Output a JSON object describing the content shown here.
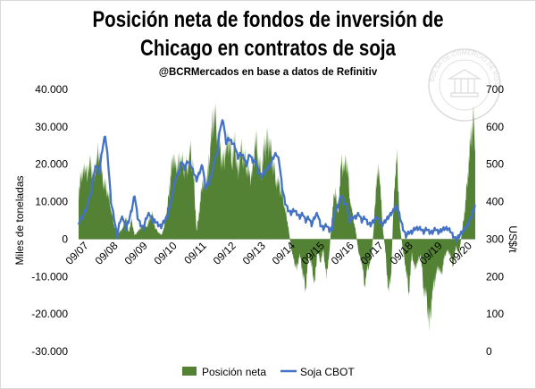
{
  "chart_data": {
    "type": "area+line",
    "title_line1": "Posición neta de fondos de inversión de",
    "title_line2": "Chicago en contratos de soja",
    "subtitle": "@BCRMercados  en base a datos de Refinitiv",
    "ylabel_left": "Miles de toneladas",
    "ylabel_right": "US$/t",
    "ylim_left": [
      -30000,
      40000
    ],
    "ylim_right": [
      0,
      700
    ],
    "yticks_left": [
      "40.000",
      "30.000",
      "20.000",
      "10.000",
      "0",
      "-10.000",
      "-20.000",
      "-30.000"
    ],
    "yticks_left_values": [
      40000,
      30000,
      20000,
      10000,
      0,
      -10000,
      -20000,
      -30000
    ],
    "yticks_right": [
      "700",
      "600",
      "500",
      "400",
      "300",
      "200",
      "100",
      "0"
    ],
    "yticks_right_values": [
      700,
      600,
      500,
      400,
      300,
      200,
      100,
      0
    ],
    "x_range": [
      2007.5,
      2020.95
    ],
    "x_ticks": [
      "09/07",
      "09/08",
      "09/09",
      "09/10",
      "09/11",
      "09/12",
      "09/13",
      "09/14",
      "09/15",
      "09/16",
      "09/17",
      "09/18",
      "09/19",
      "09/20"
    ],
    "x_tick_values": [
      2007.67,
      2008.67,
      2009.67,
      2010.67,
      2011.67,
      2012.67,
      2013.67,
      2014.67,
      2015.67,
      2016.67,
      2017.67,
      2018.67,
      2019.67,
      2020.67
    ],
    "series": [
      {
        "name": "Posición neta",
        "type": "area",
        "axis": "left",
        "color": "#548235",
        "x": [
          2007.5,
          2007.62,
          2007.75,
          2007.9,
          2008.0,
          2008.1,
          2008.2,
          2008.3,
          2008.4,
          2008.5,
          2008.6,
          2008.7,
          2008.8,
          2008.9,
          2009.0,
          2009.1,
          2009.2,
          2009.3,
          2009.4,
          2009.5,
          2009.6,
          2009.7,
          2009.8,
          2009.9,
          2010.0,
          2010.1,
          2010.2,
          2010.3,
          2010.4,
          2010.5,
          2010.6,
          2010.7,
          2010.8,
          2010.9,
          2011.0,
          2011.1,
          2011.2,
          2011.3,
          2011.4,
          2011.5,
          2011.6,
          2011.7,
          2011.8,
          2011.9,
          2012.0,
          2012.1,
          2012.2,
          2012.3,
          2012.4,
          2012.5,
          2012.6,
          2012.7,
          2012.8,
          2012.9,
          2013.0,
          2013.1,
          2013.2,
          2013.3,
          2013.4,
          2013.5,
          2013.6,
          2013.7,
          2013.8,
          2013.9,
          2014.0,
          2014.1,
          2014.2,
          2014.3,
          2014.4,
          2014.5,
          2014.6,
          2014.7,
          2014.8,
          2014.9,
          2015.0,
          2015.1,
          2015.2,
          2015.3,
          2015.4,
          2015.5,
          2015.6,
          2015.7,
          2015.8,
          2015.9,
          2016.0,
          2016.1,
          2016.2,
          2016.3,
          2016.4,
          2016.5,
          2016.6,
          2016.7,
          2016.8,
          2016.9,
          2017.0,
          2017.1,
          2017.2,
          2017.3,
          2017.4,
          2017.5,
          2017.6,
          2017.7,
          2017.8,
          2017.9,
          2018.0,
          2018.1,
          2018.2,
          2018.3,
          2018.4,
          2018.5,
          2018.6,
          2018.7,
          2018.8,
          2018.9,
          2019.0,
          2019.1,
          2019.2,
          2019.3,
          2019.4,
          2019.5,
          2019.6,
          2019.7,
          2019.8,
          2019.9,
          2020.0,
          2020.1,
          2020.2,
          2020.3,
          2020.4,
          2020.5,
          2020.6,
          2020.7,
          2020.8,
          2020.9,
          2020.95
        ],
        "values": [
          12000,
          19000,
          17000,
          20000,
          16000,
          21000,
          24000,
          16000,
          14000,
          12000,
          8000,
          4000,
          1000,
          2000,
          3000,
          6000,
          2000,
          5000,
          1000,
          2000,
          3000,
          4000,
          3000,
          5000,
          7000,
          3000,
          2000,
          1000,
          3000,
          8000,
          15000,
          23000,
          18000,
          20000,
          21000,
          19000,
          20000,
          23000,
          17000,
          2000,
          8000,
          16000,
          14000,
          18000,
          28000,
          34000,
          29000,
          23000,
          20000,
          24000,
          27000,
          21000,
          25000,
          17000,
          24000,
          22000,
          20000,
          16000,
          18000,
          27000,
          21000,
          18000,
          24000,
          26000,
          25000,
          20000,
          16000,
          14000,
          12000,
          8000,
          4000,
          -2000,
          -6000,
          -8000,
          -4000,
          -9000,
          -13000,
          -4000,
          -7000,
          -12000,
          -3000,
          -6000,
          -3000,
          -10000,
          -4000,
          7000,
          14000,
          6000,
          20000,
          19000,
          21000,
          11000,
          6000,
          2000,
          -4000,
          -6000,
          -12000,
          -8000,
          -6000,
          2000,
          16000,
          19000,
          4000,
          -3000,
          -14000,
          -9000,
          14000,
          21000,
          3000,
          -3000,
          -8000,
          -14000,
          -4000,
          -8000,
          -6000,
          -4000,
          -13000,
          -16000,
          -23000,
          -14000,
          -10000,
          -7000,
          -10000,
          -5000,
          -3000,
          -4000,
          -7000,
          -2000,
          -4000,
          2000,
          8000,
          18000,
          26000,
          32000,
          24000
        ],
        "zero_gaps_note": "values approximated from figure"
      },
      {
        "name": "Soja CBOT",
        "type": "line",
        "axis": "right",
        "color": "#4472c4",
        "x": [
          2007.5,
          2007.62,
          2007.75,
          2007.9,
          2008.0,
          2008.1,
          2008.2,
          2008.3,
          2008.4,
          2008.5,
          2008.6,
          2008.7,
          2008.8,
          2008.9,
          2009.0,
          2009.1,
          2009.2,
          2009.3,
          2009.4,
          2009.5,
          2009.6,
          2009.7,
          2009.8,
          2009.9,
          2010.0,
          2010.1,
          2010.2,
          2010.3,
          2010.4,
          2010.5,
          2010.6,
          2010.7,
          2010.8,
          2010.9,
          2011.0,
          2011.1,
          2011.2,
          2011.3,
          2011.4,
          2011.5,
          2011.6,
          2011.7,
          2011.8,
          2011.9,
          2012.0,
          2012.1,
          2012.2,
          2012.3,
          2012.4,
          2012.5,
          2012.6,
          2012.7,
          2012.8,
          2012.9,
          2013.0,
          2013.1,
          2013.2,
          2013.3,
          2013.4,
          2013.5,
          2013.6,
          2013.7,
          2013.8,
          2013.9,
          2014.0,
          2014.1,
          2014.2,
          2014.3,
          2014.4,
          2014.5,
          2014.6,
          2014.7,
          2014.8,
          2014.9,
          2015.0,
          2015.1,
          2015.2,
          2015.3,
          2015.4,
          2015.5,
          2015.6,
          2015.7,
          2015.8,
          2015.9,
          2016.0,
          2016.1,
          2016.2,
          2016.3,
          2016.4,
          2016.5,
          2016.6,
          2016.7,
          2016.8,
          2016.9,
          2017.0,
          2017.1,
          2017.2,
          2017.3,
          2017.4,
          2017.5,
          2017.6,
          2017.7,
          2017.8,
          2017.9,
          2018.0,
          2018.1,
          2018.2,
          2018.3,
          2018.4,
          2018.5,
          2018.6,
          2018.7,
          2018.8,
          2018.9,
          2019.0,
          2019.1,
          2019.2,
          2019.3,
          2019.4,
          2019.5,
          2019.6,
          2019.7,
          2019.8,
          2019.9,
          2020.0,
          2020.1,
          2020.2,
          2020.3,
          2020.4,
          2020.5,
          2020.6,
          2020.7,
          2020.8,
          2020.9,
          2020.95
        ],
        "values": [
          345,
          360,
          380,
          420,
          470,
          500,
          480,
          540,
          580,
          510,
          400,
          360,
          310,
          350,
          360,
          330,
          350,
          380,
          420,
          360,
          340,
          330,
          360,
          370,
          350,
          350,
          340,
          335,
          350,
          360,
          390,
          430,
          470,
          480,
          510,
          490,
          510,
          500,
          480,
          460,
          480,
          500,
          440,
          450,
          470,
          510,
          530,
          600,
          620,
          560,
          570,
          560,
          550,
          520,
          530,
          520,
          500,
          530,
          510,
          510,
          480,
          470,
          480,
          490,
          500,
          520,
          530,
          510,
          440,
          400,
          380,
          370,
          380,
          370,
          360,
          370,
          350,
          360,
          340,
          360,
          370,
          340,
          330,
          340,
          325,
          330,
          380,
          390,
          420,
          400,
          390,
          350,
          360,
          360,
          370,
          350,
          360,
          345,
          340,
          350,
          360,
          350,
          340,
          350,
          360,
          370,
          380,
          390,
          360,
          330,
          310,
          320,
          320,
          330,
          330,
          330,
          320,
          330,
          320,
          320,
          330,
          320,
          325,
          330,
          330,
          325,
          310,
          300,
          310,
          320,
          330,
          340,
          360,
          380,
          390
        ]
      }
    ],
    "legend": [
      "Posición neta",
      "Soja CBOT"
    ],
    "legend_position": "bottom",
    "stamp_text": "BOLSA DE COMERCIO DE ROSARIO"
  }
}
